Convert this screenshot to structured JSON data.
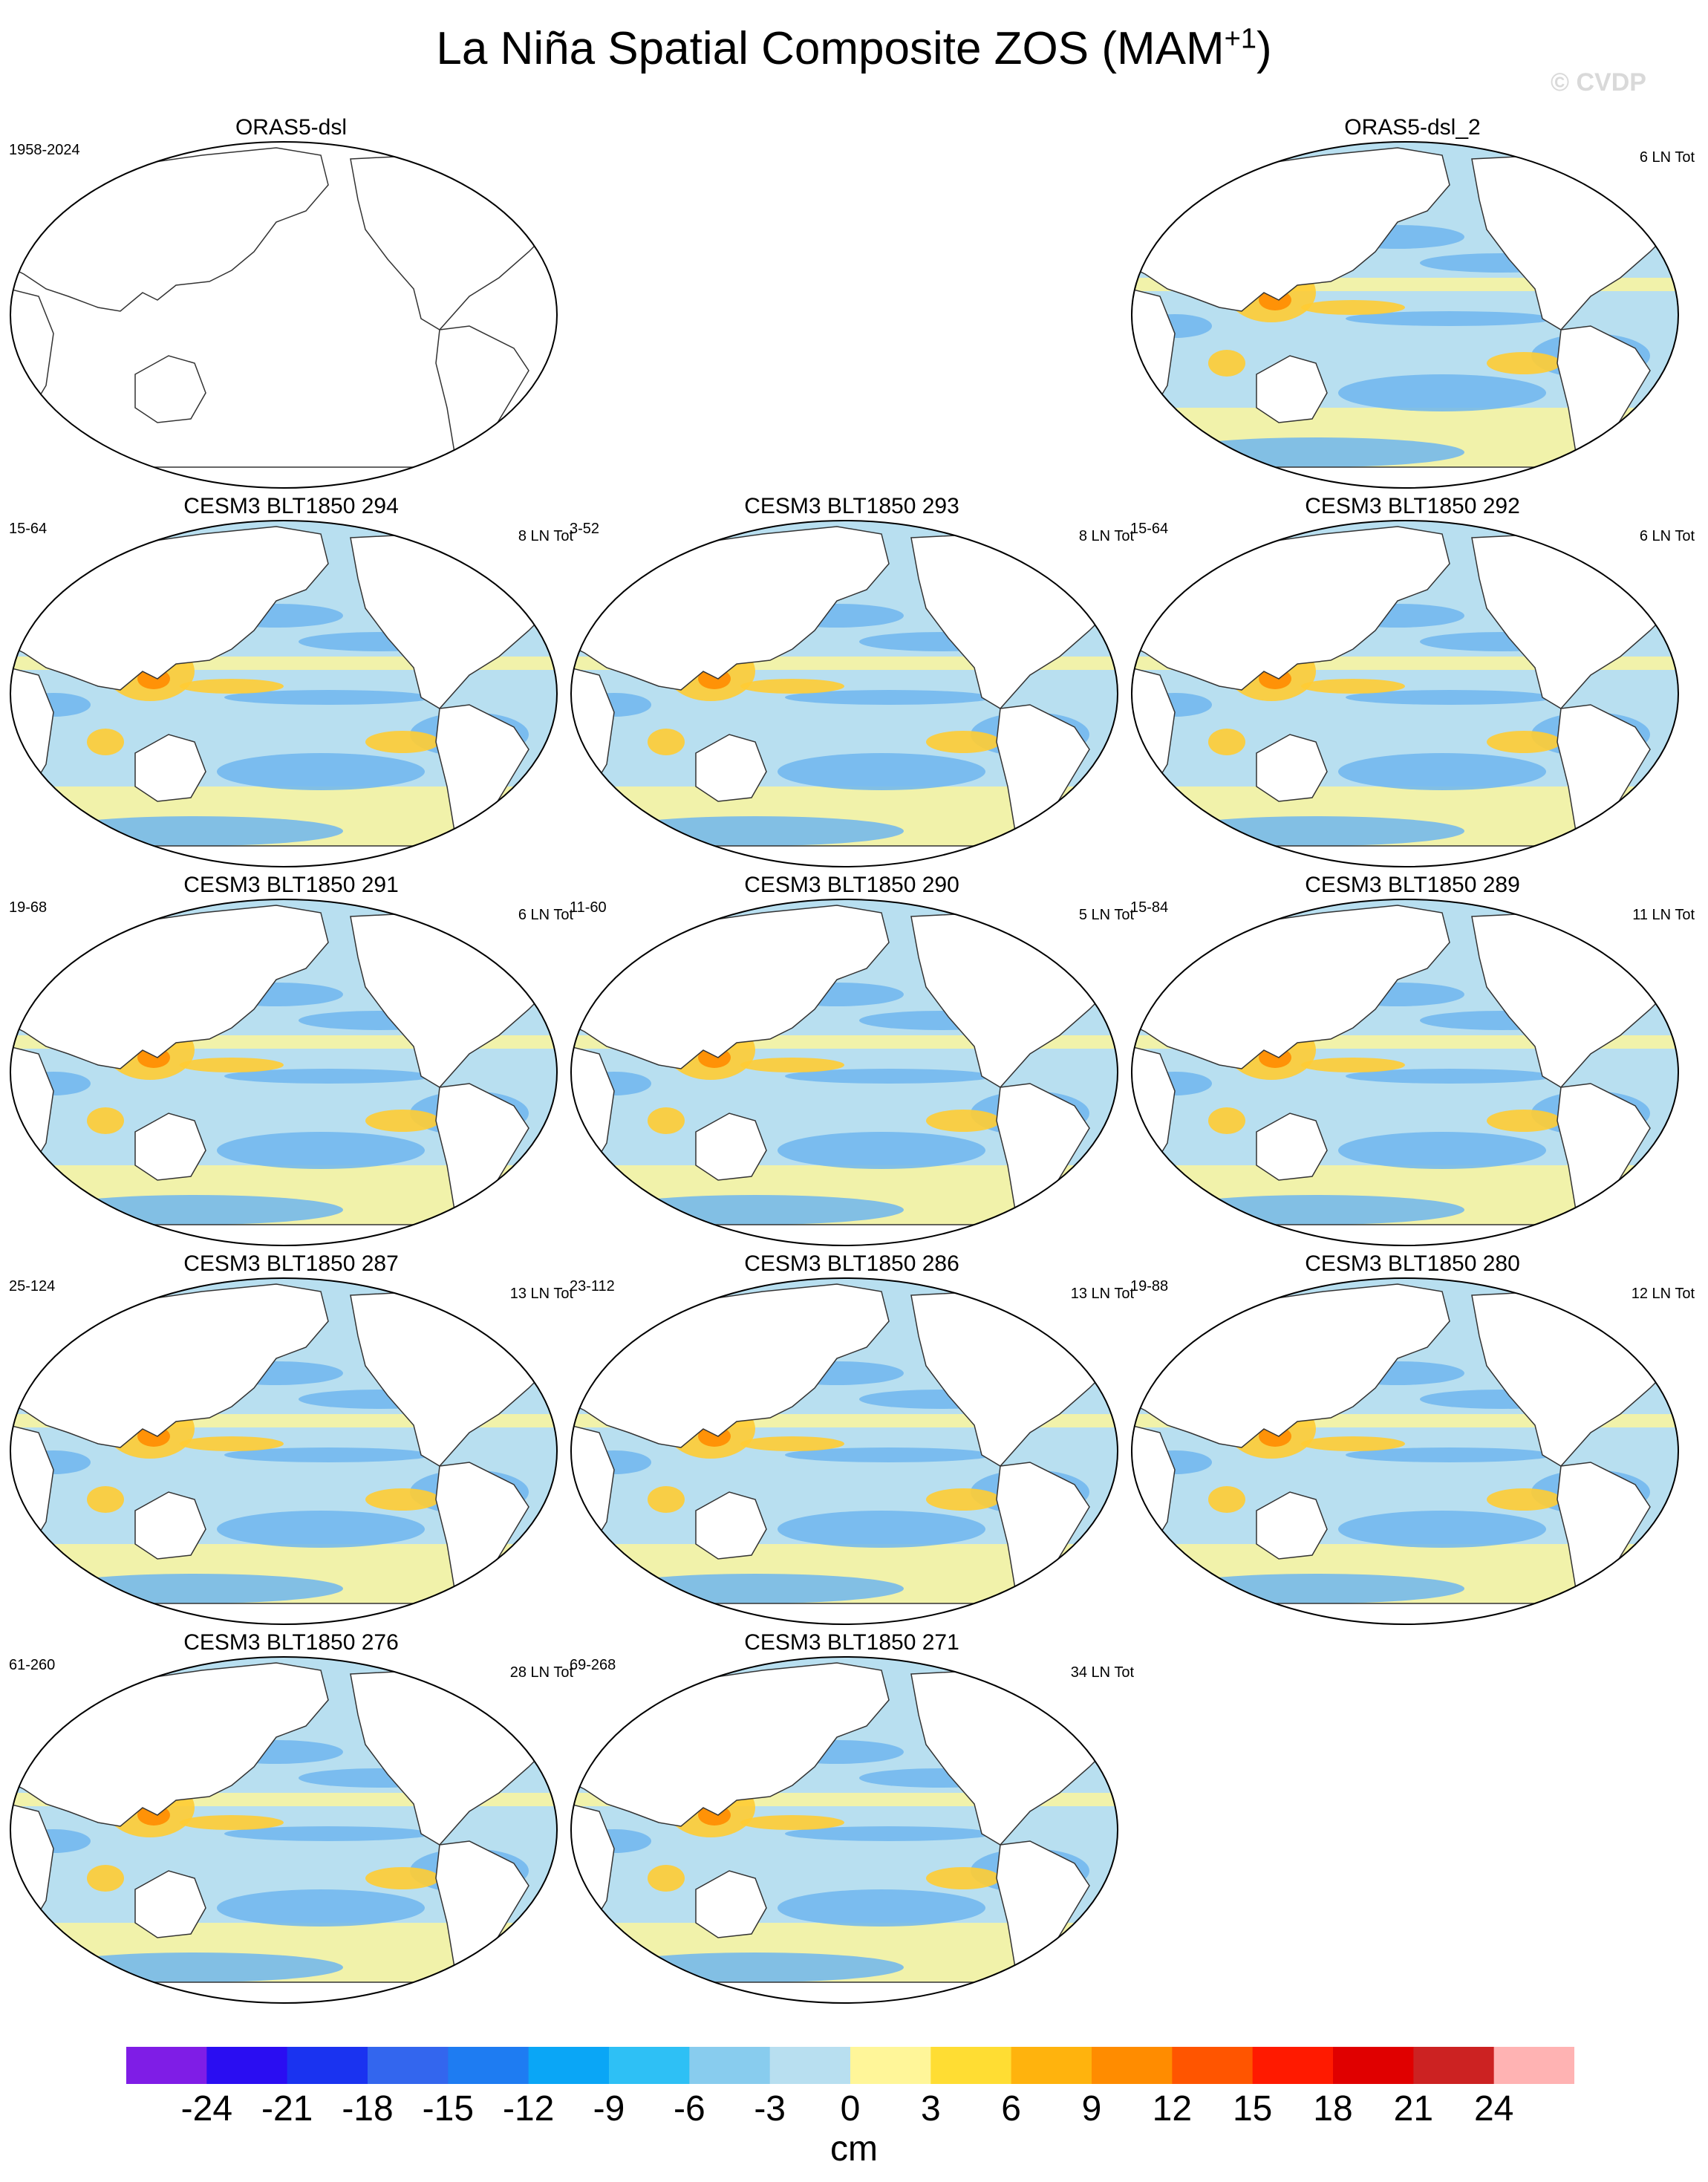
{
  "figure": {
    "title": "La Niña Spatial Composite ZOS (MAM",
    "title_sup": "+1",
    "title_end": ")",
    "watermark": "© CVDP"
  },
  "panels": [
    {
      "title": "ORAS5-dsl",
      "years": "1958-2024",
      "events": "",
      "filled": false
    },
    {
      "title": "ORAS5-dsl_2",
      "years": "",
      "events": "6 LN Tot",
      "filled": true
    },
    {
      "title": "CESM3 BLT1850 294",
      "years": "15-64",
      "events": "8 LN Tot",
      "filled": true
    },
    {
      "title": "CESM3 BLT1850 293",
      "years": "3-52",
      "events": "8 LN Tot",
      "filled": true
    },
    {
      "title": "CESM3 BLT1850 292",
      "years": "15-64",
      "events": "6 LN Tot",
      "filled": true
    },
    {
      "title": "CESM3 BLT1850 291",
      "years": "19-68",
      "events": "6 LN Tot",
      "filled": true
    },
    {
      "title": "CESM3 BLT1850 290",
      "years": "11-60",
      "events": "5 LN Tot",
      "filled": true
    },
    {
      "title": "CESM3 BLT1850 289",
      "years": "15-84",
      "events": "11 LN Tot",
      "filled": true
    },
    {
      "title": "CESM3 BLT1850 287",
      "years": "25-124",
      "events": "13 LN Tot",
      "filled": true
    },
    {
      "title": "CESM3 BLT1850 286",
      "years": "23-112",
      "events": "13 LN Tot",
      "filled": true
    },
    {
      "title": "CESM3 BLT1850 280",
      "years": "19-88",
      "events": "12 LN Tot",
      "filled": true
    },
    {
      "title": "CESM3 BLT1850 276",
      "years": "61-260",
      "events": "28 LN Tot",
      "filled": true
    },
    {
      "title": "CESM3 BLT1850 271",
      "years": "69-268",
      "events": "34 LN Tot",
      "filled": true
    }
  ],
  "colorbar": {
    "units": "cm",
    "labels": [
      "-24",
      "-21",
      "-18",
      "-15",
      "-12",
      "-9",
      "-6",
      "-3",
      "0",
      "3",
      "6",
      "9",
      "12",
      "15",
      "18",
      "21",
      "24"
    ],
    "colors": [
      "#7f1de6",
      "#2a0df2",
      "#1a33f0",
      "#3366ee",
      "#1e7cf2",
      "#0aa6f6",
      "#2ec0f5",
      "#88ccee",
      "#b8dff0",
      "#fff699",
      "#ffdd33",
      "#ffb30d",
      "#ff8c00",
      "#ff5500",
      "#ff1a00",
      "#e00000",
      "#cc2222",
      "#ffb3b3"
    ]
  }
}
